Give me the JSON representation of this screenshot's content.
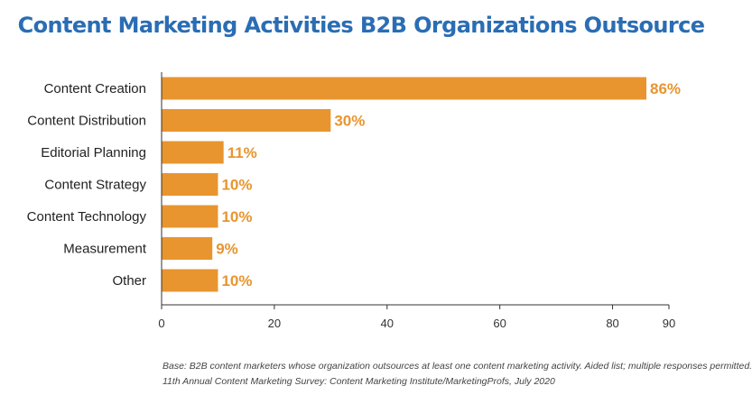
{
  "colors": {
    "title": "#2a6db4",
    "bar": "#e8952f",
    "data_label": "#e8952f",
    "axis": "#333333"
  },
  "chart_data": {
    "type": "bar",
    "orientation": "horizontal",
    "title": "Content Marketing Activities B2B Organizations Outsource",
    "categories": [
      "Content Creation",
      "Content Distribution",
      "Editorial Planning",
      "Content Strategy",
      "Content Technology",
      "Measurement",
      "Other"
    ],
    "values": [
      86,
      30,
      11,
      10,
      10,
      9,
      10
    ],
    "data_labels": [
      "86%",
      "30%",
      "11%",
      "10%",
      "10%",
      "9%",
      "10%"
    ],
    "xlim": [
      0,
      90
    ],
    "xticks": [
      0,
      20,
      40,
      60,
      80,
      90
    ],
    "xlabel": "",
    "ylabel": "",
    "grid": false,
    "legend": "none"
  },
  "footnote": {
    "line1": "Base: B2B content marketers whose organization outsources at least one content marketing activity. Aided list; multiple responses permitted.",
    "line2": "11th Annual Content Marketing Survey: Content Marketing Institute/MarketingProfs, July 2020"
  }
}
